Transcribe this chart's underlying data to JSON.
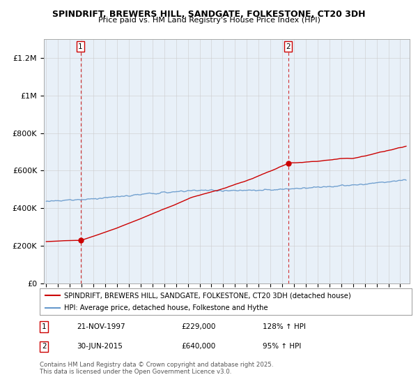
{
  "title": "SPINDRIFT, BREWERS HILL, SANDGATE, FOLKESTONE, CT20 3DH",
  "subtitle": "Price paid vs. HM Land Registry's House Price Index (HPI)",
  "ylabel_ticks": [
    "£0",
    "£200K",
    "£400K",
    "£600K",
    "£800K",
    "£1M",
    "£1.2M"
  ],
  "ytick_values": [
    0,
    200000,
    400000,
    600000,
    800000,
    1000000,
    1200000
  ],
  "ylim": [
    0,
    1300000
  ],
  "xlim_start": 1994.8,
  "xlim_end": 2025.8,
  "sale1_x": 1997.9,
  "sale1_y": 229000,
  "sale2_x": 2015.5,
  "sale2_y": 640000,
  "sale1_date": "21-NOV-1997",
  "sale1_price": "£229,000",
  "sale1_hpi": "128% ↑ HPI",
  "sale2_date": "30-JUN-2015",
  "sale2_price": "£640,000",
  "sale2_hpi": "95% ↑ HPI",
  "line1_color": "#cc0000",
  "line2_color": "#6699cc",
  "chart_bg": "#e8f0f8",
  "line1_label": "SPINDRIFT, BREWERS HILL, SANDGATE, FOLKESTONE, CT20 3DH (detached house)",
  "line2_label": "HPI: Average price, detached house, Folkestone and Hythe",
  "footer": "Contains HM Land Registry data © Crown copyright and database right 2025.\nThis data is licensed under the Open Government Licence v3.0.",
  "background_color": "#ffffff",
  "grid_color": "#cccccc",
  "dashed_line_color": "#cc0000"
}
